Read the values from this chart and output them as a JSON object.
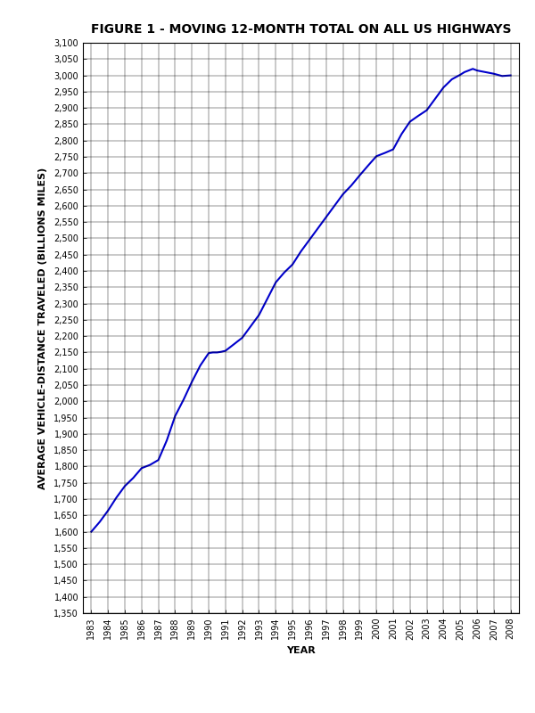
{
  "title": "FIGURE 1 - MOVING 12-MONTH TOTAL ON ALL US HIGHWAYS",
  "xlabel": "YEAR",
  "ylabel": "AVERAGE VEHICLE-DISTANCE TRAVELED (BILLIONS MILES)",
  "ylim_min": 1350,
  "ylim_max": 3100,
  "ytick_step": 50,
  "line_color": "#0000CC",
  "line_width": 1.5,
  "background_color": "#FFFFFF",
  "grid_color": "#000000",
  "title_fontsize": 10,
  "label_fontsize": 8,
  "tick_fontsize": 7,
  "years_detailed": [
    1983.0,
    1983.5,
    1984.0,
    1984.5,
    1985.0,
    1985.5,
    1986.0,
    1986.5,
    1987.0,
    1987.5,
    1988.0,
    1988.5,
    1989.0,
    1989.5,
    1990.0,
    1990.25,
    1990.5,
    1990.75,
    1991.0,
    1991.5,
    1992.0,
    1992.5,
    1993.0,
    1993.5,
    1994.0,
    1994.5,
    1995.0,
    1995.5,
    1996.0,
    1996.5,
    1997.0,
    1997.5,
    1998.0,
    1998.5,
    1999.0,
    1999.5,
    2000.0,
    2000.5,
    2001.0,
    2001.5,
    2002.0,
    2002.5,
    2003.0,
    2003.5,
    2004.0,
    2004.5,
    2005.0,
    2005.25,
    2005.5,
    2005.75,
    2006.0,
    2006.5,
    2007.0,
    2007.5,
    2008.0
  ],
  "values_detailed": [
    1600,
    1630,
    1665,
    1705,
    1740,
    1765,
    1795,
    1805,
    1820,
    1880,
    1955,
    2005,
    2060,
    2110,
    2148,
    2150,
    2150,
    2152,
    2155,
    2175,
    2195,
    2230,
    2265,
    2315,
    2365,
    2395,
    2420,
    2460,
    2495,
    2530,
    2565,
    2600,
    2635,
    2662,
    2693,
    2723,
    2752,
    2762,
    2773,
    2820,
    2858,
    2876,
    2893,
    2928,
    2963,
    2988,
    3002,
    3010,
    3015,
    3020,
    3015,
    3010,
    3005,
    2998,
    3000
  ]
}
